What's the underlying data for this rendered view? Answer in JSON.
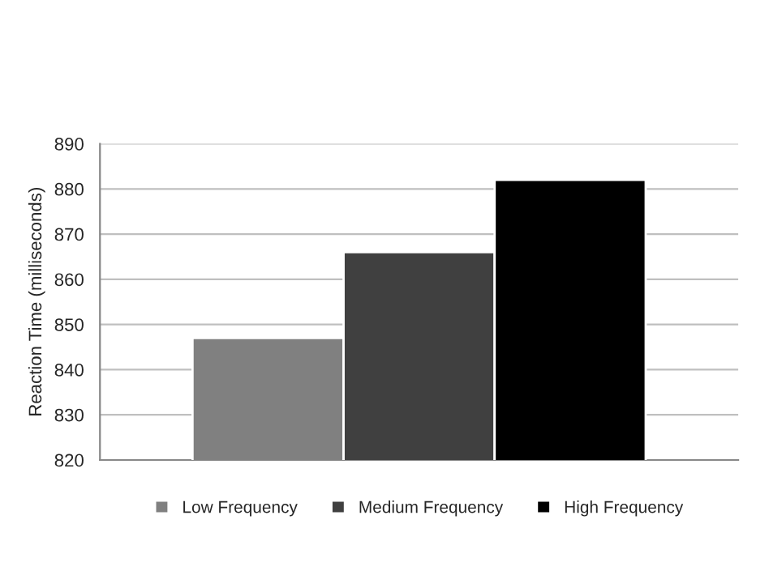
{
  "chart_data": {
    "type": "bar",
    "ylabel": "Reaction Time (milliseconds)",
    "categories": [
      null
    ],
    "series": [
      {
        "name": "Low Frequency",
        "color": "#808080",
        "values": [
          847
        ]
      },
      {
        "name": "Medium Frequency",
        "color": "#404040",
        "values": [
          866
        ]
      },
      {
        "name": "High Frequency",
        "color": "#000000",
        "values": [
          882
        ]
      }
    ],
    "ylim": [
      820,
      890
    ],
    "yticks": [
      820,
      830,
      840,
      850,
      860,
      870,
      880,
      890
    ],
    "grid": "y",
    "legend": "bottom"
  }
}
